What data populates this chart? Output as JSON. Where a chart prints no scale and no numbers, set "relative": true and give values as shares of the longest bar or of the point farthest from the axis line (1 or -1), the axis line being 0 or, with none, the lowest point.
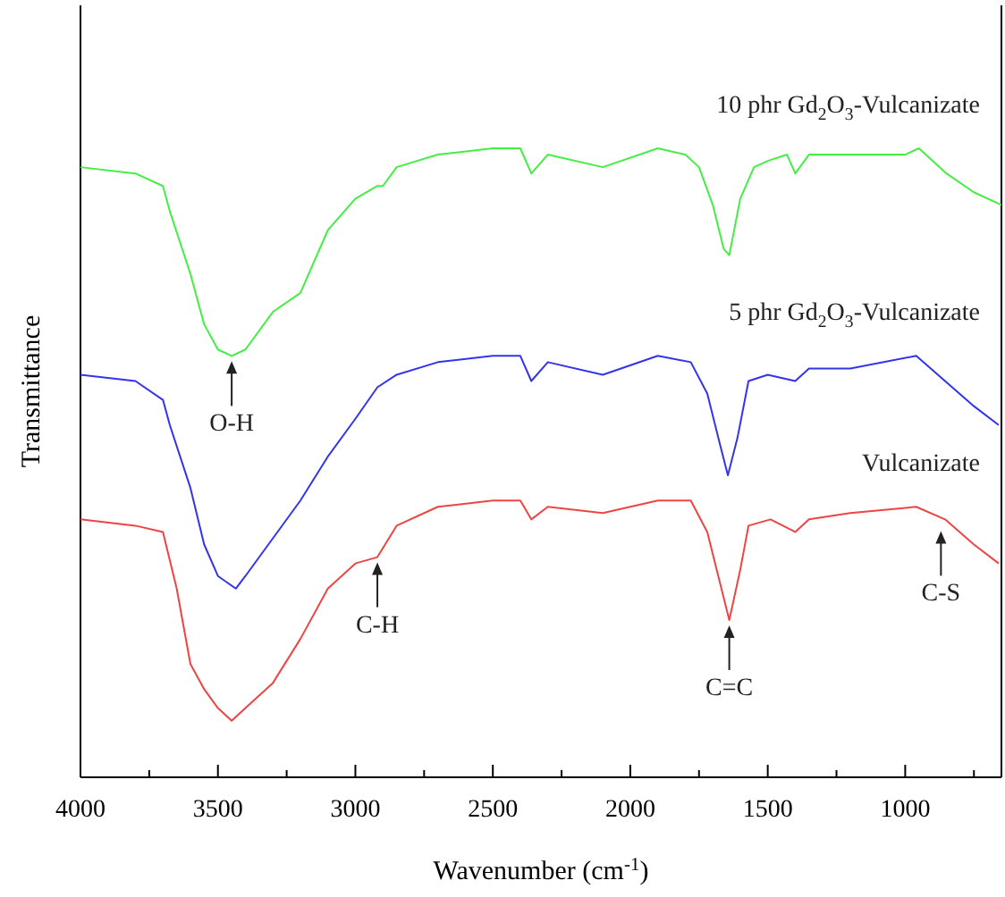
{
  "chart_data": {
    "type": "line",
    "xlabel": "Wavenumber (cm$^{-1}$)",
    "ylabel": "Transmittance",
    "relative": true,
    "tick_labels": "x",
    "grid": false,
    "marker": "none",
    "line_style": "solid",
    "xlim": [
      4000,
      650
    ],
    "xticks": [
      4000,
      {
        "value": 3750,
        "label": null
      },
      3500,
      {
        "value": 3250,
        "label": null
      },
      3000,
      {
        "value": 2750,
        "label": null
      },
      2500,
      {
        "value": 2250,
        "label": null
      },
      2000,
      {
        "value": 1750,
        "label": null
      },
      1500,
      {
        "value": 1250,
        "label": null
      },
      1000,
      {
        "value": 750,
        "label": null
      }
    ],
    "series": [
      {
        "name": "10 phr Gd$_{2}$O$_{3}$-Vulcanizate",
        "color": "#44ee44",
        "x": [
          4000,
          3800,
          3700,
          3675,
          3600,
          3550,
          3500,
          3450,
          3400,
          3300,
          3200,
          3100,
          3000,
          2920,
          2900,
          2850,
          2700,
          2500,
          2400,
          2360,
          2300,
          2100,
          1900,
          1800,
          1750,
          1700,
          1660,
          1640,
          1600,
          1550,
          1500,
          1430,
          1400,
          1350,
          1200,
          1000,
          950,
          850,
          750,
          650
        ],
        "values": [
          0.97,
          0.96,
          0.94,
          0.9,
          0.8,
          0.72,
          0.68,
          0.67,
          0.68,
          0.74,
          0.77,
          0.87,
          0.92,
          0.94,
          0.94,
          0.97,
          0.99,
          1.0,
          1.0,
          0.96,
          0.99,
          0.97,
          1.0,
          0.99,
          0.97,
          0.91,
          0.84,
          0.83,
          0.92,
          0.97,
          0.98,
          0.99,
          0.96,
          0.99,
          0.99,
          0.99,
          1.0,
          0.96,
          0.93,
          0.91
        ]
      },
      {
        "name": "5 phr Gd$_{2}$O$_{3}$-Vulcanizate",
        "color": "#3333ee",
        "x": [
          4000,
          3800,
          3700,
          3675,
          3600,
          3550,
          3500,
          3435,
          3400,
          3300,
          3200,
          3100,
          3000,
          2920,
          2850,
          2700,
          2500,
          2400,
          2360,
          2300,
          2100,
          1900,
          1780,
          1720,
          1680,
          1645,
          1610,
          1570,
          1500,
          1400,
          1350,
          1200,
          960,
          855,
          750,
          660
        ],
        "values": [
          0.64,
          0.63,
          0.6,
          0.56,
          0.46,
          0.37,
          0.32,
          0.3,
          0.32,
          0.38,
          0.44,
          0.51,
          0.57,
          0.62,
          0.64,
          0.66,
          0.67,
          0.67,
          0.63,
          0.66,
          0.64,
          0.67,
          0.66,
          0.61,
          0.54,
          0.48,
          0.54,
          0.63,
          0.64,
          0.63,
          0.65,
          0.65,
          0.67,
          0.63,
          0.59,
          0.56
        ]
      },
      {
        "name": "Vulcanizate",
        "color": "#ee4444",
        "x": [
          4000,
          3800,
          3700,
          3650,
          3600,
          3550,
          3500,
          3450,
          3400,
          3300,
          3200,
          3100,
          3000,
          2920,
          2850,
          2700,
          2500,
          2400,
          2360,
          2300,
          2100,
          1900,
          1780,
          1720,
          1680,
          1640,
          1600,
          1570,
          1490,
          1400,
          1350,
          1200,
          960,
          855,
          750,
          660
        ],
        "values": [
          0.41,
          0.4,
          0.39,
          0.3,
          0.18,
          0.14,
          0.11,
          0.09,
          0.11,
          0.15,
          0.22,
          0.3,
          0.34,
          0.35,
          0.4,
          0.43,
          0.44,
          0.44,
          0.41,
          0.43,
          0.42,
          0.44,
          0.44,
          0.39,
          0.32,
          0.25,
          0.33,
          0.4,
          0.41,
          0.39,
          0.41,
          0.42,
          0.43,
          0.41,
          0.37,
          0.34
        ]
      }
    ],
    "annotations": [
      {
        "text": "O-H",
        "x": 3450,
        "y": 0.67
      },
      {
        "text": "C-H",
        "x": 2920,
        "y": 0.35
      },
      {
        "text": "C=C",
        "x": 1640,
        "y": 0.25
      },
      {
        "text": "C-S",
        "x": 870,
        "y": 0.4
      }
    ]
  }
}
